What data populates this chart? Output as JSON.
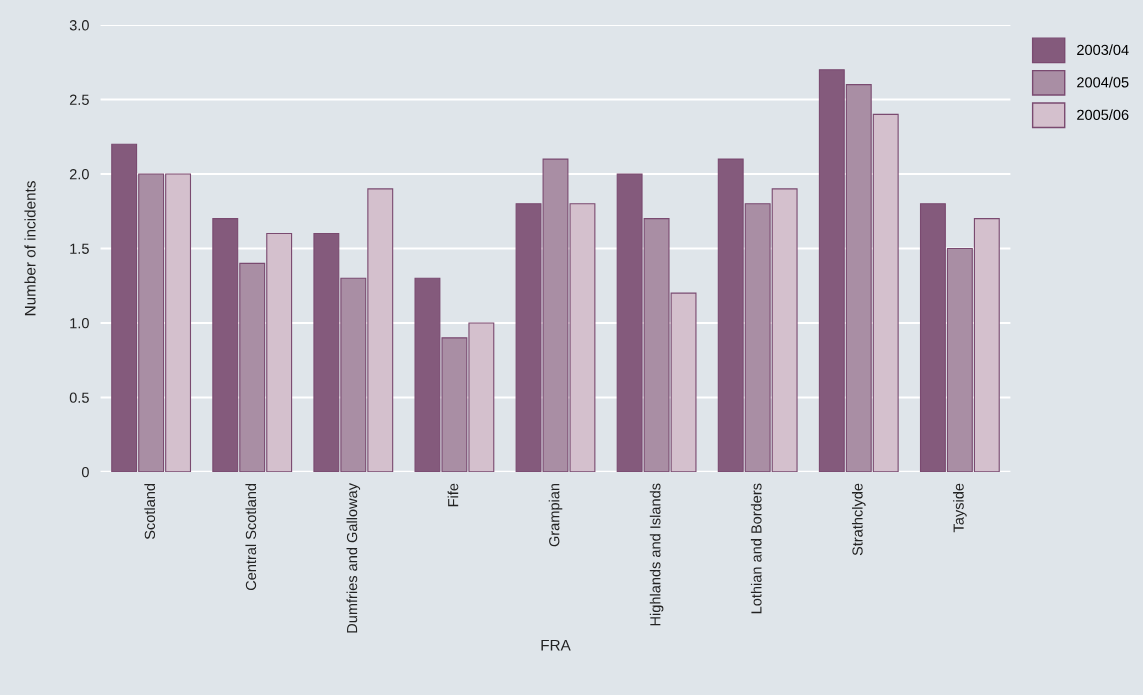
{
  "chart_data": {
    "type": "bar",
    "xlabel": "FRA",
    "ylabel": "Number of incidents",
    "categories": [
      "Scotland",
      "Central Scotland",
      "Dumfries and Galloway",
      "Fife",
      "Grampian",
      "Highlands and Islands",
      "Lothian and Borders",
      "Strathclyde",
      "Tayside"
    ],
    "series": [
      {
        "name": "2003/04",
        "color": "#845a7c",
        "values": [
          2.2,
          1.7,
          1.6,
          1.3,
          1.8,
          2.0,
          2.1,
          2.7,
          1.8
        ]
      },
      {
        "name": "2004/05",
        "color": "#a98ea4",
        "values": [
          2.0,
          1.4,
          1.3,
          0.9,
          2.1,
          1.7,
          1.8,
          2.6,
          1.5
        ]
      },
      {
        "name": "2005/06",
        "color": "#d4c0cd",
        "values": [
          2.0,
          1.6,
          1.9,
          1.0,
          1.8,
          1.2,
          1.9,
          2.4,
          1.7
        ]
      }
    ],
    "ylim": [
      0,
      3.0
    ],
    "yticks": [
      {
        "value": 0,
        "label": "0"
      },
      {
        "value": 0.5,
        "label": "0.5"
      },
      {
        "value": 1.0,
        "label": "1.0"
      },
      {
        "value": 1.5,
        "label": "1.5"
      },
      {
        "value": 2.0,
        "label": "2.0"
      },
      {
        "value": 2.5,
        "label": "2.5"
      },
      {
        "value": 3.0,
        "label": "3.0"
      }
    ],
    "grid": "y",
    "legend": "top right"
  }
}
